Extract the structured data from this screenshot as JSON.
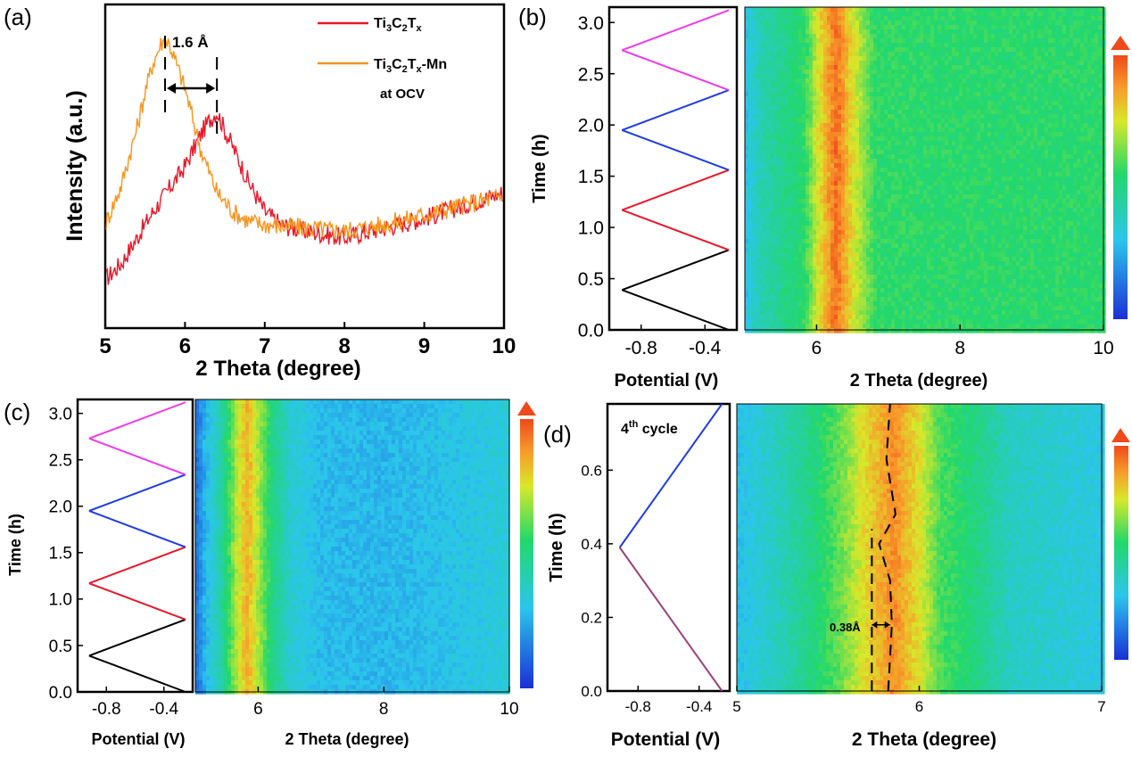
{
  "panels": {
    "a": {
      "label": "(a)",
      "xlabel": "2 Theta (degree)",
      "ylabel": "Intensity (a.u.)",
      "shift_label": "1.6 Å",
      "legend": [
        {
          "base": "Ti",
          "s1": "3",
          "mid": "C",
          "s2": "2",
          "end": "T",
          "s3": "x",
          "suffix": "",
          "color": "#e8182a"
        },
        {
          "base": "Ti",
          "s1": "3",
          "mid": "C",
          "s2": "2",
          "end": "T",
          "s3": "x",
          "suffix": "-Mn",
          "color": "#f7941d"
        }
      ],
      "legend_note": "at OCV"
    },
    "b": {
      "label": "(b)",
      "ylabel": "Time (h)",
      "xlabel_left": "Potential (V)",
      "xlabel_right": "2 Theta (degree)"
    },
    "c": {
      "label": "(c)",
      "ylabel": "Time (h)",
      "xlabel_left": "Potential (V)",
      "xlabel_right": "2 Theta (degree)"
    },
    "d": {
      "label": "(d)",
      "ylabel": "Time (h)",
      "xlabel_left": "Potential (V)",
      "xlabel_right": "2 Theta (degree)",
      "cycle_base": "4",
      "cycle_sup": "th",
      "cycle_rest": " cycle",
      "shift_label": "0.38Å"
    }
  },
  "colors": {
    "black": "#000000",
    "red": "#e8182a",
    "blue": "#1f3ce0",
    "magenta": "#ee3ae8",
    "orange": "#f7941d",
    "purple": "#9b3f7a"
  },
  "chart_data": [
    {
      "panel": "a",
      "type": "line",
      "title": "",
      "xlabel": "2 Theta (degree)",
      "ylabel": "Intensity (a.u.)",
      "xlim": [
        5,
        10
      ],
      "ylim": [
        0,
        1
      ],
      "xticks": [
        5,
        6,
        7,
        8,
        9,
        10
      ],
      "series": [
        {
          "name": "Ti3C2Tx",
          "color": "#e8182a",
          "x": [
            5.0,
            5.2,
            5.4,
            5.6,
            5.8,
            6.0,
            6.2,
            6.3,
            6.4,
            6.5,
            6.6,
            6.8,
            7.0,
            7.2,
            7.5,
            8.0,
            8.5,
            9.0,
            9.5,
            10.0
          ],
          "y": [
            0.15,
            0.2,
            0.28,
            0.36,
            0.43,
            0.5,
            0.6,
            0.64,
            0.67,
            0.61,
            0.56,
            0.45,
            0.36,
            0.32,
            0.3,
            0.28,
            0.31,
            0.34,
            0.38,
            0.42
          ]
        },
        {
          "name": "Ti3C2Tx-Mn",
          "color": "#f7941d",
          "x": [
            5.0,
            5.2,
            5.4,
            5.5,
            5.6,
            5.7,
            5.75,
            5.8,
            5.9,
            6.0,
            6.2,
            6.4,
            6.6,
            6.8,
            7.0,
            7.5,
            8.0,
            8.5,
            9.0,
            9.5,
            10.0
          ],
          "y": [
            0.32,
            0.44,
            0.62,
            0.73,
            0.82,
            0.88,
            0.89,
            0.88,
            0.81,
            0.74,
            0.55,
            0.42,
            0.36,
            0.33,
            0.32,
            0.31,
            0.3,
            0.32,
            0.35,
            0.38,
            0.41
          ]
        }
      ],
      "annotations": [
        {
          "text": "1.6 Å",
          "from_x": 5.75,
          "to_x": 6.4
        }
      ]
    },
    {
      "panel": "b",
      "type": "heatmap",
      "xlabel": "2 Theta (degree)",
      "ylabel": "Time (h)",
      "xlim": [
        5,
        10
      ],
      "ylim": [
        0,
        3.15
      ],
      "xticks": [
        6,
        8,
        10
      ],
      "yticks": [
        0.0,
        0.5,
        1.0,
        1.5,
        2.0,
        2.5,
        3.0
      ],
      "potential_ticks": [
        -0.8,
        -0.4
      ],
      "peak_center": 6.25,
      "peak_halfwidth": 0.25,
      "profile": {
        "x": [
          5.0,
          5.2,
          5.5,
          5.8,
          6.0,
          6.25,
          6.5,
          6.8,
          7.5,
          10.0
        ],
        "v": [
          0.3,
          0.42,
          0.48,
          0.55,
          0.75,
          0.95,
          0.75,
          0.56,
          0.55,
          0.55
        ]
      },
      "potential": {
        "t": [
          0.0,
          0.39,
          0.78,
          1.17,
          1.56,
          1.95,
          2.34,
          2.73,
          3.12
        ],
        "v": [
          -0.25,
          -0.92,
          -0.25,
          -0.92,
          -0.25,
          -0.92,
          -0.25,
          -0.92,
          -0.25
        ],
        "colors": [
          "#000000",
          "#000000",
          "#e8182a",
          "#e8182a",
          "#1f3ce0",
          "#1f3ce0",
          "#ee3ae8",
          "#ee3ae8"
        ]
      }
    },
    {
      "panel": "c",
      "type": "heatmap",
      "xlabel": "2 Theta (degree)",
      "ylabel": "Time (h)",
      "xlim": [
        5,
        10
      ],
      "ylim": [
        0,
        3.15
      ],
      "xticks": [
        6,
        8,
        10
      ],
      "yticks": [
        0.0,
        0.5,
        1.0,
        1.5,
        2.0,
        2.5,
        3.0
      ],
      "potential_ticks": [
        -0.8,
        -0.4
      ],
      "peak_center": 5.8,
      "peak_halfwidth": 0.18,
      "profile": {
        "x": [
          5.0,
          5.15,
          5.4,
          5.6,
          5.8,
          6.0,
          6.2,
          6.5,
          7.0,
          8.0,
          9.0,
          10.0
        ],
        "v": [
          0.15,
          0.28,
          0.45,
          0.68,
          0.85,
          0.68,
          0.5,
          0.35,
          0.28,
          0.27,
          0.3,
          0.34
        ]
      },
      "potential": {
        "t": [
          0.0,
          0.39,
          0.78,
          1.17,
          1.56,
          1.95,
          2.34,
          2.73,
          3.12
        ],
        "v": [
          -0.25,
          -0.92,
          -0.25,
          -0.92,
          -0.25,
          -0.92,
          -0.25,
          -0.92,
          -0.25
        ],
        "colors": [
          "#000000",
          "#000000",
          "#e8182a",
          "#e8182a",
          "#1f3ce0",
          "#1f3ce0",
          "#ee3ae8",
          "#ee3ae8"
        ]
      }
    },
    {
      "panel": "d",
      "type": "heatmap",
      "xlabel": "2 Theta (degree)",
      "ylabel": "Time (h)",
      "xlim": [
        5,
        7
      ],
      "ylim": [
        0,
        0.78
      ],
      "xticks": [
        5,
        6,
        7
      ],
      "yticks": [
        0.0,
        0.2,
        0.4,
        0.6
      ],
      "potential_ticks": [
        -0.8,
        -0.4
      ],
      "peak_center": 5.85,
      "peak_halfwidth": 0.22,
      "profile": {
        "x": [
          5.0,
          5.2,
          5.4,
          5.55,
          5.7,
          5.85,
          6.0,
          6.1,
          6.3,
          6.5,
          7.0
        ],
        "v": [
          0.3,
          0.38,
          0.5,
          0.62,
          0.78,
          0.9,
          0.75,
          0.6,
          0.5,
          0.38,
          0.32
        ]
      },
      "potential": {
        "t": [
          0.0,
          0.39,
          0.78
        ],
        "v": [
          -0.25,
          -0.92,
          -0.25
        ],
        "colors": [
          "#9b3f7a",
          "#1f3ce0"
        ]
      },
      "guide_lines": {
        "left_x": 5.74,
        "right_x": [
          5.83,
          5.85,
          5.84,
          5.78,
          5.87,
          5.82,
          5.84
        ],
        "right_t": [
          0.0,
          0.18,
          0.3,
          0.4,
          0.48,
          0.63,
          0.78
        ]
      },
      "annotations": [
        {
          "text": "0.38Å",
          "from_x": 5.74,
          "to_x": 5.84,
          "t": 0.18
        }
      ]
    }
  ]
}
